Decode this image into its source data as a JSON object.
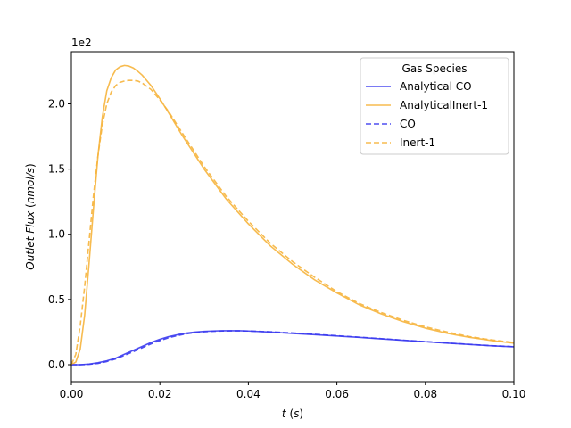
{
  "chart_data": {
    "type": "line",
    "xlabel": "t (s)",
    "ylabel": "Outlet Flux (nmol/s)",
    "y_offset_label": "1e2",
    "xlim": [
      0.0,
      0.1
    ],
    "ylim": [
      -0.13,
      2.4
    ],
    "x_ticks": [
      {
        "value": 0.0,
        "label": "0.00"
      },
      {
        "value": 0.02,
        "label": "0.02"
      },
      {
        "value": 0.04,
        "label": "0.04"
      },
      {
        "value": 0.06,
        "label": "0.06"
      },
      {
        "value": 0.08,
        "label": "0.08"
      },
      {
        "value": 0.1,
        "label": "0.10"
      }
    ],
    "y_ticks": [
      {
        "value": 0.0,
        "label": "0.0"
      },
      {
        "value": 0.5,
        "label": "0.5"
      },
      {
        "value": 1.0,
        "label": "1.0"
      },
      {
        "value": 1.5,
        "label": "1.5"
      },
      {
        "value": 2.0,
        "label": "2.0"
      }
    ],
    "grid": false,
    "legend": {
      "title": "Gas Species",
      "placement": "top-right"
    },
    "series": [
      {
        "name": "Analytical CO",
        "color": "#3b3bf0",
        "dash": "solid",
        "x": [
          0.0,
          0.002,
          0.004,
          0.006,
          0.008,
          0.01,
          0.012,
          0.014,
          0.016,
          0.018,
          0.02,
          0.022,
          0.024,
          0.026,
          0.028,
          0.03,
          0.032,
          0.034,
          0.036,
          0.038,
          0.04,
          0.045,
          0.05,
          0.055,
          0.06,
          0.065,
          0.07,
          0.075,
          0.08,
          0.085,
          0.09,
          0.095,
          0.1
        ],
        "y": [
          0.0,
          0.0,
          0.005,
          0.015,
          0.03,
          0.05,
          0.08,
          0.11,
          0.14,
          0.17,
          0.195,
          0.215,
          0.23,
          0.242,
          0.25,
          0.255,
          0.258,
          0.26,
          0.26,
          0.26,
          0.258,
          0.25,
          0.24,
          0.23,
          0.22,
          0.21,
          0.198,
          0.187,
          0.176,
          0.165,
          0.155,
          0.145,
          0.137
        ]
      },
      {
        "name": "AnalyticalInert-1",
        "color": "#f6b43c",
        "dash": "solid",
        "x": [
          0.0,
          0.001,
          0.002,
          0.003,
          0.004,
          0.005,
          0.006,
          0.007,
          0.008,
          0.009,
          0.01,
          0.011,
          0.012,
          0.013,
          0.014,
          0.015,
          0.016,
          0.018,
          0.02,
          0.022,
          0.025,
          0.03,
          0.035,
          0.04,
          0.045,
          0.05,
          0.055,
          0.06,
          0.065,
          0.07,
          0.075,
          0.08,
          0.085,
          0.09,
          0.095,
          0.1
        ],
        "y": [
          0.0,
          0.02,
          0.12,
          0.38,
          0.78,
          1.2,
          1.6,
          1.9,
          2.1,
          2.2,
          2.26,
          2.285,
          2.295,
          2.29,
          2.275,
          2.25,
          2.22,
          2.14,
          2.04,
          1.93,
          1.76,
          1.5,
          1.27,
          1.08,
          0.91,
          0.77,
          0.65,
          0.55,
          0.46,
          0.39,
          0.33,
          0.28,
          0.24,
          0.21,
          0.185,
          0.165
        ]
      },
      {
        "name": "CO",
        "color": "#3b3bf0",
        "dash": "dashed",
        "x": [
          0.0,
          0.002,
          0.004,
          0.006,
          0.008,
          0.01,
          0.012,
          0.014,
          0.016,
          0.018,
          0.02,
          0.022,
          0.024,
          0.026,
          0.028,
          0.03,
          0.032,
          0.034,
          0.036,
          0.038,
          0.04,
          0.045,
          0.05,
          0.055,
          0.06,
          0.065,
          0.07,
          0.075,
          0.08,
          0.085,
          0.09,
          0.095,
          0.1
        ],
        "y": [
          0.0,
          0.0,
          0.003,
          0.01,
          0.024,
          0.044,
          0.072,
          0.1,
          0.13,
          0.16,
          0.185,
          0.207,
          0.223,
          0.237,
          0.246,
          0.252,
          0.256,
          0.258,
          0.259,
          0.259,
          0.258,
          0.252,
          0.243,
          0.233,
          0.222,
          0.211,
          0.2,
          0.188,
          0.177,
          0.166,
          0.156,
          0.146,
          0.138
        ]
      },
      {
        "name": "Inert-1",
        "color": "#f6b43c",
        "dash": "dashed",
        "x": [
          0.0,
          0.001,
          0.002,
          0.003,
          0.004,
          0.005,
          0.006,
          0.007,
          0.008,
          0.009,
          0.01,
          0.011,
          0.012,
          0.013,
          0.014,
          0.015,
          0.016,
          0.018,
          0.02,
          0.022,
          0.025,
          0.03,
          0.035,
          0.04,
          0.045,
          0.05,
          0.055,
          0.06,
          0.065,
          0.07,
          0.075,
          0.08,
          0.085,
          0.09,
          0.095,
          0.1
        ],
        "y": [
          0.0,
          0.08,
          0.3,
          0.6,
          0.95,
          1.3,
          1.6,
          1.84,
          2.0,
          2.09,
          2.14,
          2.165,
          2.175,
          2.18,
          2.18,
          2.175,
          2.16,
          2.11,
          2.03,
          1.94,
          1.78,
          1.52,
          1.29,
          1.1,
          0.93,
          0.79,
          0.67,
          0.56,
          0.47,
          0.4,
          0.34,
          0.29,
          0.25,
          0.215,
          0.19,
          0.17
        ]
      }
    ]
  }
}
